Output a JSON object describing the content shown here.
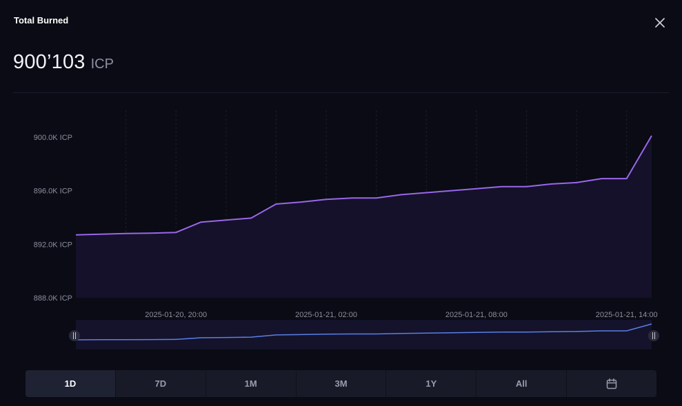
{
  "header": {
    "title": "Total Burned",
    "total_value": "900’103",
    "total_unit": "ICP"
  },
  "icons": {
    "close": "close-icon",
    "calendar": "calendar-icon"
  },
  "colors": {
    "line": "#9a67ea",
    "fill": "#15112a",
    "navigator_line": "#5b7fe8",
    "background": "#0a0b14"
  },
  "chart_data": {
    "type": "area",
    "x": [
      "2025-01-20 16:00",
      "2025-01-20 17:00",
      "2025-01-20 18:00",
      "2025-01-20 19:00",
      "2025-01-20 20:00",
      "2025-01-20 21:00",
      "2025-01-20 22:00",
      "2025-01-20 23:00",
      "2025-01-21 00:00",
      "2025-01-21 01:00",
      "2025-01-21 02:00",
      "2025-01-21 03:00",
      "2025-01-21 04:00",
      "2025-01-21 05:00",
      "2025-01-21 06:00",
      "2025-01-21 07:00",
      "2025-01-21 08:00",
      "2025-01-21 09:00",
      "2025-01-21 10:00",
      "2025-01-21 11:00",
      "2025-01-21 12:00",
      "2025-01-21 13:00",
      "2025-01-21 14:00",
      "2025-01-21 15:00"
    ],
    "values": [
      892700,
      892750,
      892800,
      892830,
      892880,
      893650,
      893800,
      893950,
      895000,
      895150,
      895350,
      895450,
      895450,
      895700,
      895850,
      896000,
      896150,
      896300,
      896300,
      896500,
      896600,
      896900,
      896900,
      900103
    ],
    "unit": "ICP",
    "ylim": [
      888000,
      902000
    ],
    "y_ticks": [
      888000,
      892000,
      896000,
      900000
    ],
    "y_tick_labels": [
      "888.0K ICP",
      "892.0K ICP",
      "896.0K ICP",
      "900.0K ICP"
    ],
    "x_tick_labels": [
      "2025-01-20, 20:00",
      "2025-01-21, 02:00",
      "2025-01-21, 08:00",
      "2025-01-21, 14:00"
    ],
    "x_tick_positions": [
      "2025-01-20 20:00",
      "2025-01-21 02:00",
      "2025-01-21 08:00",
      "2025-01-21 14:00"
    ],
    "grid": "vertical dashed",
    "legend": "none",
    "navigator": true
  },
  "range_tabs": {
    "items": [
      "1D",
      "7D",
      "1M",
      "3M",
      "1Y",
      "All"
    ],
    "selected": "1D"
  }
}
